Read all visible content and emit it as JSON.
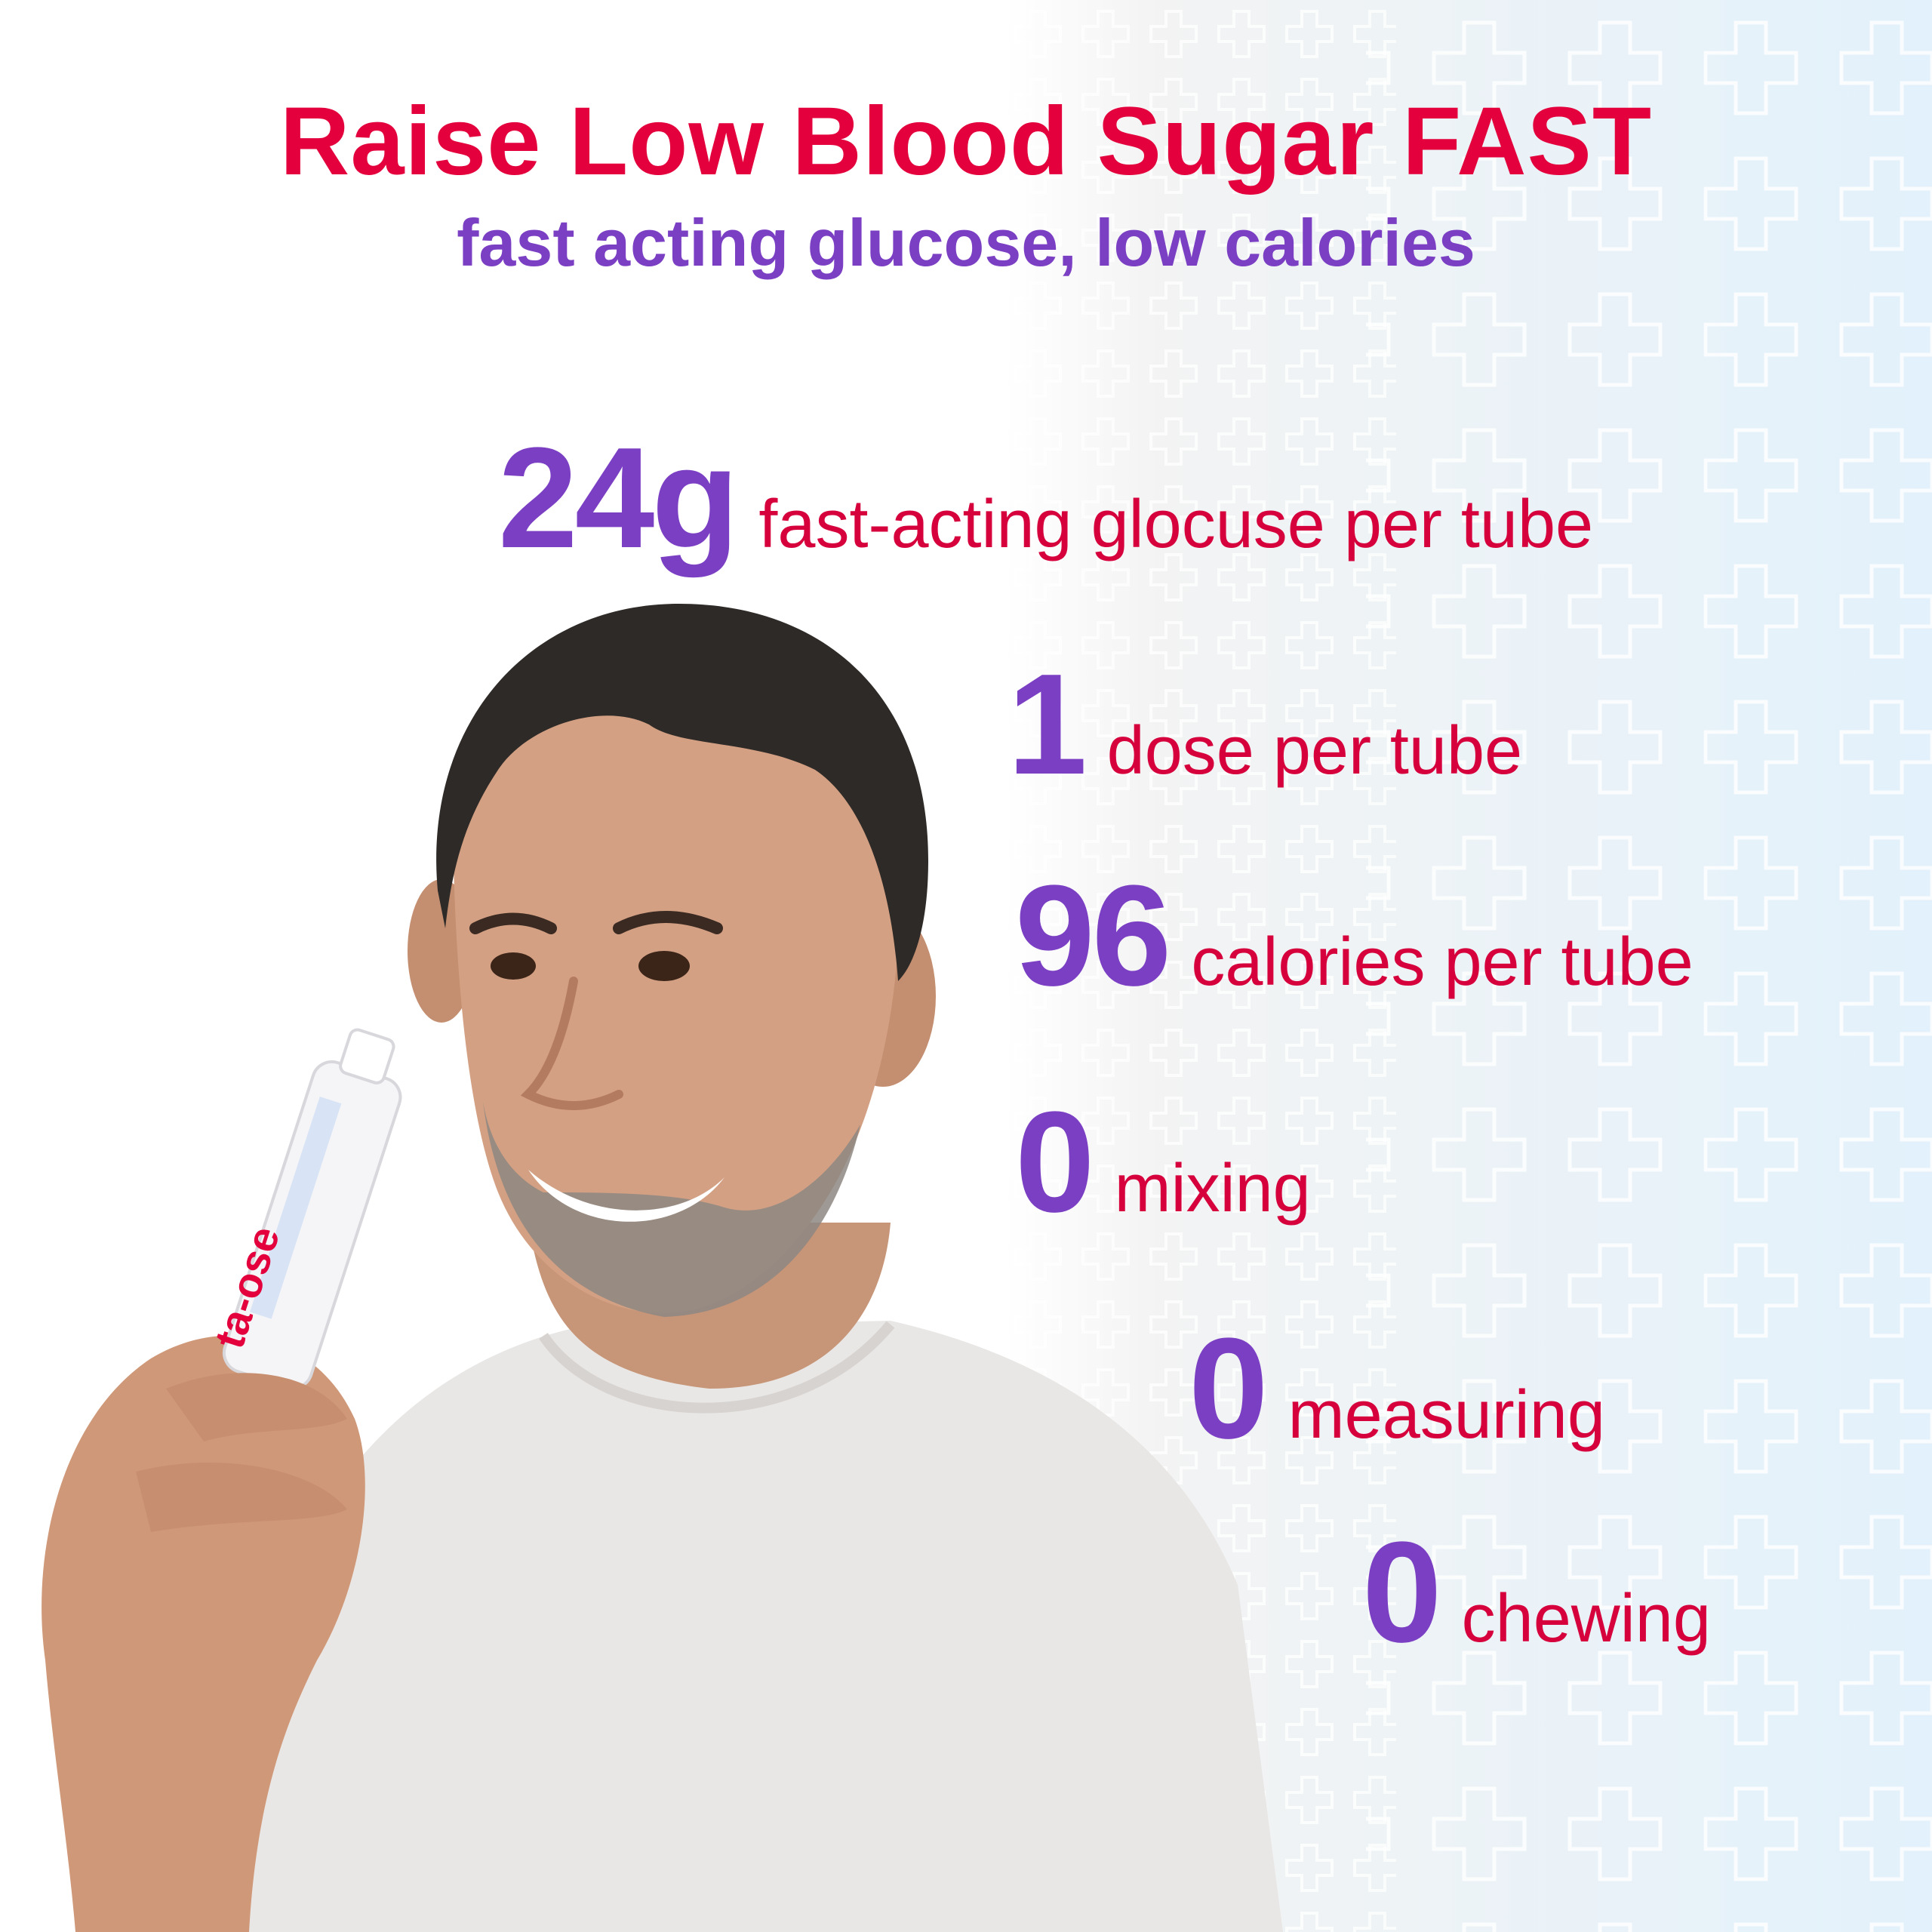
{
  "headline": {
    "title": "Raise Low Blood Sugar FAST",
    "subtitle": "fast acting glucose, low calories"
  },
  "stats": [
    {
      "value": "24g",
      "label": "fast-acting glocuse per tube"
    },
    {
      "value": "1",
      "label": "dose per tube"
    },
    {
      "value": "96",
      "label": "calories per tube"
    },
    {
      "value": "0",
      "label": "mixing"
    },
    {
      "value": "0",
      "label": "measuring"
    },
    {
      "value": "0",
      "label": "chewing"
    }
  ],
  "product": {
    "tube_label": "ta-ose"
  },
  "colors": {
    "headline_red": "#e3003c",
    "accent_purple": "#7b3fc4",
    "label_red": "#d6003c"
  }
}
